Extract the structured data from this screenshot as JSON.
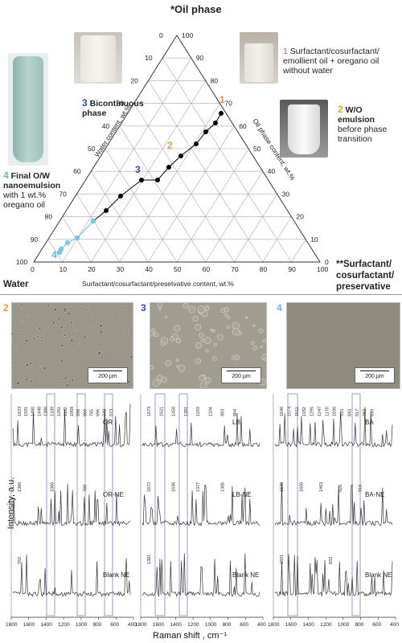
{
  "ternary": {
    "top_label": "*Oil phase",
    "left_label": "Water",
    "right_label": "**Surfactant/ cosurfactant/ preservative",
    "axis_left": "Water content, wt.%",
    "axis_right": "Oil phase content, wt.%",
    "axis_bottom": "Surfactant/cosurfactant/presetvative content, wt.%",
    "ticks": [
      "0",
      "10",
      "20",
      "30",
      "40",
      "50",
      "60",
      "70",
      "80",
      "90",
      "100"
    ],
    "point_numbers": [
      "1",
      "2",
      "3",
      "4"
    ],
    "colors": {
      "n1": "#c8906a",
      "n2": "#e8a020",
      "n3": "#2a4fb0",
      "n4": "#6ab4dc",
      "black_points": "#000000",
      "blue_points": "#7cc4e8"
    }
  },
  "annotations": {
    "a1": {
      "num": "1",
      "text": "Surfactant/cosurfactant/ emollient oil + oregano oil without water"
    },
    "a2": {
      "num": "2",
      "title": "W/O emulsion",
      "text": "before phase transition"
    },
    "a3": {
      "num": "3",
      "title": "Bicontinuous phase"
    },
    "a4": {
      "num": "4",
      "title": "Final O/W nanoemulsion",
      "text": "with 1 wt.% oregano oil"
    }
  },
  "micrographs": [
    {
      "num": "2",
      "scale": "200 µm",
      "color": "#e8a020"
    },
    {
      "num": "3",
      "scale": "200 µm",
      "color": "#2a4fb0"
    },
    {
      "num": "4",
      "scale": "200 µm",
      "color": "#6ab4dc"
    }
  ],
  "spectra": {
    "ylabel": "Intensity, a.u.",
    "xlabel": "Raman shift , cm⁻¹",
    "xticks": [
      "1800",
      "1600",
      "1400",
      "1200",
      "1000",
      "800",
      "600",
      "400"
    ],
    "panels": [
      {
        "labels": [
          "OR",
          "OR-NE",
          "Blank NE"
        ],
        "peaks_top": [
          "1623",
          "1591",
          "1480",
          "1448",
          "1380",
          "1339",
          "1261",
          "1182",
          "1068",
          "956",
          "869",
          "765",
          "696",
          "740",
          "573"
        ],
        "peaks_mid": [
          "1366",
          "1066",
          "789"
        ],
        "peaks_bot": [
          "782"
        ]
      },
      {
        "labels": [
          "LB",
          "LB-NE",
          "Blank NE"
        ],
        "peaks_top": [
          "1673",
          "1621",
          "1450",
          "1381",
          "1193",
          "1104",
          "983",
          "804"
        ],
        "peaks_mid": [
          "1672",
          "1636",
          "1377",
          "1306"
        ],
        "peaks_bot": [
          "1381"
        ]
      },
      {
        "labels": [
          "BA",
          "BA-NE",
          "Blank NE"
        ],
        "peaks_top": [
          "1640",
          "1574",
          "1611",
          "1182",
          "1295",
          "1247",
          "1178",
          "1036",
          "915",
          "843",
          "817",
          "762",
          "639"
        ],
        "peaks_mid": [
          "1636",
          "1606",
          "1463",
          "829",
          "816"
        ],
        "peaks_bot": [
          "1601",
          "833"
        ]
      }
    ]
  }
}
